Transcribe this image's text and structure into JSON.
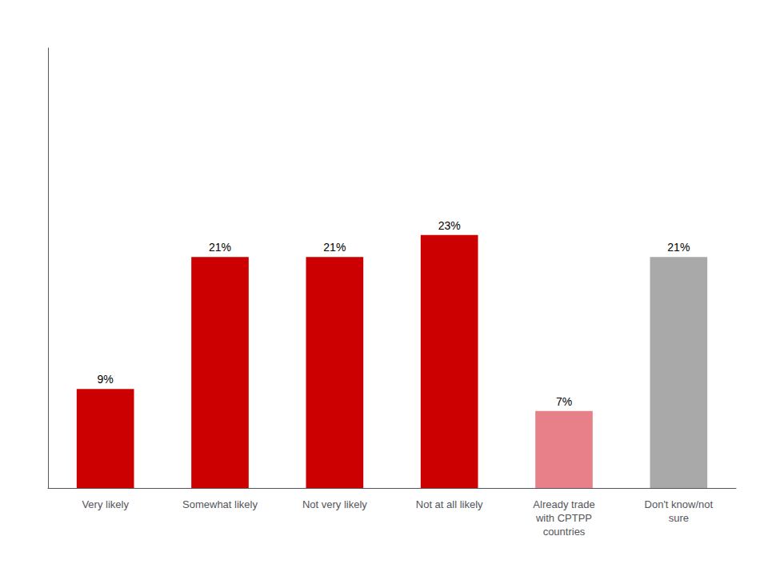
{
  "chart_data": {
    "type": "bar",
    "categories": [
      "Very likely",
      "Somewhat likely",
      "Not very likely",
      "Not at all likely",
      "Already trade\nwith CPTPP\ncountries",
      "Don't know/not\nsure"
    ],
    "values": [
      9,
      21,
      21,
      23,
      7,
      21
    ],
    "value_labels": [
      "9%",
      "21%",
      "21%",
      "23%",
      "7%",
      "21%"
    ],
    "colors": [
      "#CC0000",
      "#CC0000",
      "#CC0000",
      "#CC0000",
      "#E8808A",
      "#A9A9A9"
    ],
    "ylim": [
      0,
      40
    ],
    "grid": false,
    "data_labels": true,
    "tick_labels": "x"
  }
}
